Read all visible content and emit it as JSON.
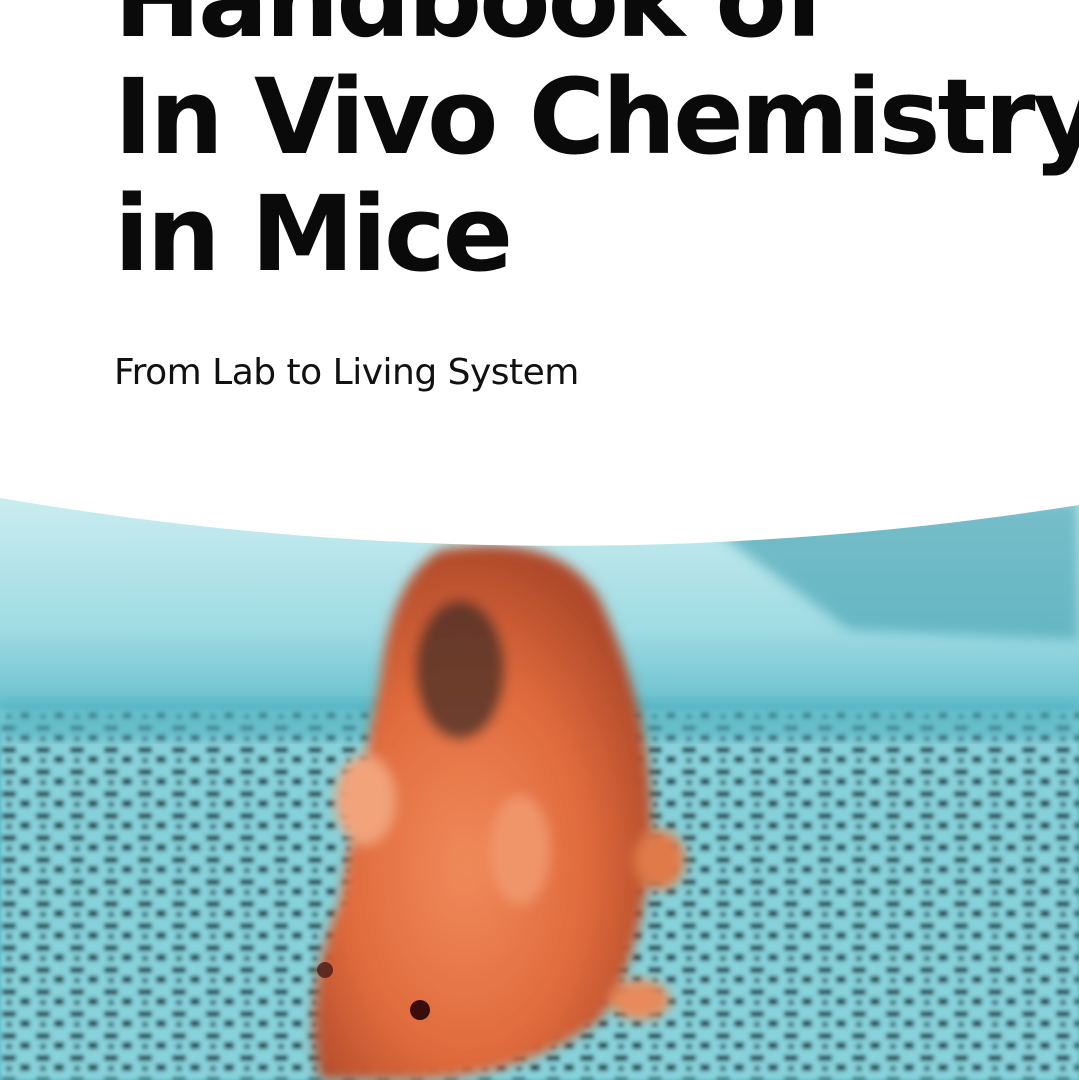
{
  "cover": {
    "title_lines": [
      "Handbook of",
      "In Vivo Chemistry",
      "in Mice"
    ],
    "subtitle": "From Lab to Living System",
    "image_subject": "mouse-on-gel-pattern",
    "colors": {
      "background": "#ffffff",
      "text": "#0a0a0a",
      "photo_teal": "#3aa6b4",
      "mouse_orange": "#e06a3c"
    }
  }
}
